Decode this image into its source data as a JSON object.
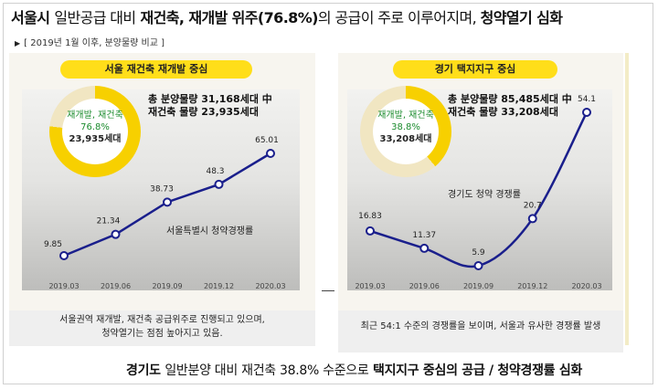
{
  "title": {
    "part1": "서울시 ",
    "part2": "일반공급 대비",
    "part3": " 재건축, 재개발 위주(76.8%)",
    "part4": "의 공급이 주로 이루어지며, ",
    "part5": "청약열기 심화"
  },
  "subtitle": "[ 2019년 1월 이후, 분양물량 비교 ]",
  "left": {
    "pill": "서울 재건축 재개발 중심",
    "donut": {
      "line1": "재개발, 재건축",
      "pct": "76.8%",
      "units": "23,935세대",
      "share": 0.768
    },
    "total_line1": "총 분양물량 31,168세대 中",
    "total_line2": "재건축 물량 23,935세대",
    "competition_label": "서울특별시 청약경쟁률",
    "note_line1": "서울권역 재개발, 재건축 공급위주로 진행되고 있으며,",
    "note_line2": "청약열기는 점점 높아지고 있음."
  },
  "right": {
    "pill": "경기 택지지구 중심",
    "donut": {
      "line1": "재개발, 재건축",
      "pct": "38.8%",
      "units": "33,208세대",
      "share": 0.388
    },
    "total_line1": "총 분양물량 85,485세대 中",
    "total_line2": "재건축 물량 33,208세대",
    "competition_label": "경기도 청약 경쟁률",
    "note_line1": "최근 54:1 수준의 경쟁률을 보이며, 서울과 유사한 경쟁률 발생"
  },
  "bottom": {
    "part1": "경기도 ",
    "part2": "일반분양 대비 재건축 38.8% 수준으로",
    "part3": " 택지지구 중심의 공급 / 청약경쟁률 심화"
  },
  "colors": {
    "accent": "#ffde1a",
    "line": "#1a1f8c",
    "green": "#1c8c2e"
  },
  "chart_data": [
    {
      "type": "line",
      "title": "서울특별시 청약경쟁률",
      "categories": [
        "2019.03",
        "2019.06",
        "2019.09",
        "2019.12",
        "2020.03"
      ],
      "values": [
        9.85,
        21.34,
        38.73,
        48.3,
        65.01
      ],
      "labels": [
        "9.85",
        "21.34",
        "38.73",
        "48.3",
        "65.01"
      ]
    },
    {
      "type": "line",
      "title": "경기도 청약 경쟁률",
      "categories": [
        "2019.03",
        "2019.06",
        "2019.09",
        "2019.12",
        "2020.03"
      ],
      "values": [
        16.83,
        11.37,
        5.9,
        20.7,
        54.1
      ],
      "labels": [
        "16.83",
        "11.37",
        "5.9",
        "20.7",
        "54.1"
      ]
    }
  ]
}
